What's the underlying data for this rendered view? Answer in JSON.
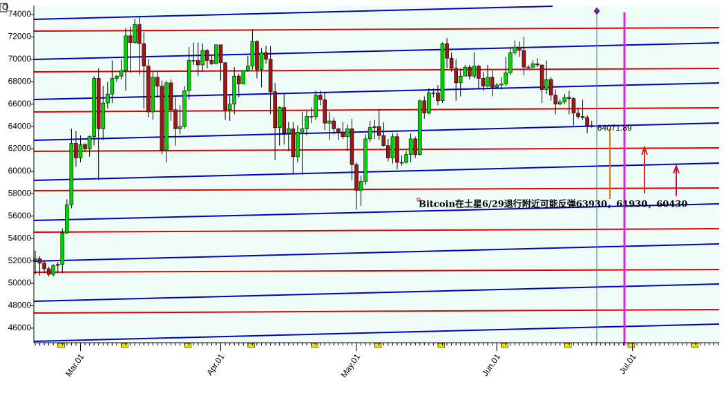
{
  "chart_data": {
    "type": "candlestick",
    "corner_label": "O",
    "annotation": "Bitcoin在土星6/29退行附近可能反弹63930，61930，60430",
    "up_color": "#00d400",
    "down_color": "#a31515",
    "ylim": [
      44760,
      74680
    ],
    "yticks": [
      46000,
      48000,
      50000,
      52000,
      54000,
      56000,
      58000,
      60000,
      62000,
      64000,
      66000,
      68000,
      70000,
      72000,
      74000
    ],
    "categories": [
      null,
      null,
      null,
      null,
      null,
      null,
      null,
      null,
      null,
      null,
      "Mar.01",
      null,
      null,
      null,
      null,
      null,
      null,
      null,
      null,
      null,
      null,
      null,
      null,
      null,
      null,
      null,
      null,
      null,
      null,
      null,
      null,
      null,
      null,
      null,
      null,
      null,
      null,
      null,
      null,
      null,
      null,
      "Apr.01",
      null,
      null,
      null,
      null,
      null,
      null,
      null,
      null,
      null,
      null,
      null,
      null,
      null,
      null,
      null,
      null,
      null,
      null,
      null,
      null,
      null,
      null,
      null,
      null,
      null,
      null,
      null,
      null,
      null,
      "May.01",
      null,
      null,
      null,
      null,
      null,
      null,
      null,
      null,
      null,
      null,
      null,
      null,
      null,
      null,
      null,
      null,
      null,
      null,
      null,
      null,
      null,
      null,
      null,
      null,
      null,
      null,
      null,
      null,
      null,
      null,
      "Jun.01",
      null,
      null,
      null,
      null,
      null,
      null,
      null,
      null,
      null,
      null,
      null,
      null,
      null,
      null,
      null,
      null,
      null,
      null,
      null,
      null,
      null,
      null,
      null,
      null,
      null,
      null,
      null,
      null,
      null,
      "Jul.01",
      null,
      null,
      null,
      null,
      null,
      null,
      null,
      null,
      null,
      null,
      null,
      null,
      null,
      null,
      null,
      null,
      null,
      null,
      null
    ],
    "open": [
      52100,
      52200,
      51800,
      51300,
      50800,
      51600,
      51700,
      54500,
      57000,
      62500,
      61200,
      62400,
      62000,
      63100,
      68300,
      63800,
      66100,
      66900,
      68300,
      68500,
      69000,
      72100,
      71500,
      73100,
      71400,
      69400,
      65300,
      68400,
      67600,
      61900,
      67900,
      65500,
      63800,
      64000,
      67200,
      69900,
      69900,
      69500,
      70800,
      69900,
      69600,
      71300,
      69700,
      65500,
      66000,
      68500,
      67800,
      69000,
      69400,
      71600,
      69100,
      70600,
      70000,
      67100,
      63900,
      65700,
      63400,
      63800,
      61300,
      63500,
      63800,
      64900,
      64900,
      66800,
      66400,
      64300,
      64500,
      63800,
      63500,
      63100,
      63800,
      60600,
      58300,
      59100,
      62900,
      63900,
      64000,
      63200,
      62300,
      61200,
      63100,
      60800,
      60800,
      61500,
      62900,
      61500,
      66300,
      65200,
      67000,
      67000,
      66300,
      71400,
      70100,
      69200,
      67900,
      68500,
      69300,
      68500,
      69400,
      68300,
      67600,
      68400,
      67500,
      67700,
      67800,
      68800,
      70600,
      71100,
      70800,
      69300,
      69300,
      69600,
      69500,
      67300,
      68200,
      66800,
      66000,
      66200,
      66600,
      66500,
      65200,
      64900,
      64800,
      64100,
      null,
      null,
      null,
      null,
      null,
      null,
      null,
      null,
      null,
      null,
      null,
      null,
      null,
      null,
      null,
      null,
      null,
      null,
      null,
      null,
      null,
      null,
      null,
      null,
      null,
      null,
      null,
      null
    ],
    "high": [
      52900,
      52400,
      52000,
      51500,
      51700,
      51900,
      54900,
      57500,
      63800,
      63600,
      63200,
      62500,
      63200,
      68500,
      69200,
      67600,
      68000,
      69900,
      68600,
      70000,
      72800,
      72900,
      73600,
      73800,
      72400,
      70000,
      68900,
      68900,
      68100,
      68100,
      68200,
      66600,
      65900,
      67600,
      71100,
      71500,
      71500,
      71400,
      70900,
      70300,
      71300,
      71300,
      69700,
      66900,
      69300,
      68700,
      69000,
      70300,
      72700,
      71700,
      71000,
      71200,
      71200,
      67900,
      65800,
      66900,
      64400,
      64400,
      64100,
      65300,
      65400,
      65700,
      67200,
      67200,
      67100,
      65300,
      64800,
      63900,
      64400,
      64200,
      64700,
      60800,
      59600,
      63300,
      64500,
      64600,
      65500,
      64400,
      62900,
      63400,
      63400,
      61400,
      61800,
      63400,
      63100,
      66400,
      66700,
      67400,
      67400,
      67700,
      71500,
      71900,
      70600,
      70000,
      69200,
      69500,
      69500,
      70600,
      69500,
      68900,
      69500,
      69000,
      67900,
      68400,
      70200,
      71000,
      71700,
      71600,
      72000,
      69500,
      69900,
      70100,
      69500,
      69900,
      68400,
      67300,
      66400,
      66900,
      67200,
      66600,
      65700,
      66400,
      65000,
      64500,
      null,
      null,
      null,
      null,
      null,
      null,
      null,
      null,
      null,
      null,
      null,
      null,
      null,
      null,
      null,
      null,
      null,
      null,
      null,
      null,
      null,
      null,
      null,
      null,
      null,
      null,
      null,
      null
    ],
    "low": [
      50800,
      50700,
      50900,
      50600,
      50600,
      50900,
      50900,
      54400,
      56700,
      60400,
      60800,
      61700,
      61300,
      62300,
      59200,
      62800,
      65600,
      66100,
      68000,
      68200,
      67200,
      68800,
      71400,
      68600,
      65600,
      64800,
      64600,
      66600,
      61500,
      60800,
      64500,
      62300,
      63300,
      63800,
      66400,
      69500,
      68500,
      68900,
      69200,
      69500,
      69600,
      68100,
      64600,
      64500,
      65100,
      66600,
      67800,
      68900,
      69100,
      68300,
      67500,
      69600,
      65100,
      61000,
      62300,
      62400,
      61800,
      59800,
      60800,
      59700,
      63200,
      64300,
      64600,
      65900,
      63700,
      62800,
      63300,
      62800,
      62900,
      61800,
      59200,
      56600,
      56900,
      58800,
      62600,
      62900,
      62800,
      62200,
      60900,
      60700,
      60200,
      60500,
      60700,
      60800,
      61200,
      61400,
      64700,
      65100,
      66600,
      65900,
      66100,
      69200,
      68900,
      66300,
      66700,
      68500,
      68200,
      68300,
      67300,
      67200,
      67500,
      66700,
      67400,
      67300,
      67600,
      68600,
      70400,
      70200,
      68600,
      69200,
      69200,
      69300,
      66100,
      66900,
      66300,
      65100,
      65900,
      66000,
      65100,
      64100,
      64700,
      64600,
      63400,
      63900,
      null,
      null,
      null,
      null,
      null,
      null,
      null,
      null,
      null,
      null,
      null,
      null,
      null,
      null,
      null,
      null,
      null,
      null,
      null,
      null,
      null,
      null,
      null,
      null,
      null,
      null,
      null,
      null
    ],
    "close": [
      52200,
      51800,
      51300,
      50800,
      51600,
      51700,
      54500,
      57000,
      62500,
      61200,
      62400,
      62000,
      63100,
      68300,
      63800,
      66100,
      66900,
      68300,
      68500,
      69000,
      72100,
      71500,
      73100,
      71400,
      69400,
      65300,
      68400,
      67600,
      61900,
      67900,
      65500,
      63800,
      64000,
      67200,
      69900,
      69900,
      69500,
      70800,
      69900,
      69600,
      71300,
      69700,
      65500,
      66000,
      68500,
      67800,
      69000,
      69400,
      71600,
      69100,
      70600,
      70000,
      67100,
      63900,
      65700,
      63400,
      63800,
      61300,
      63500,
      63800,
      64900,
      64900,
      66800,
      66400,
      64300,
      64500,
      63800,
      63500,
      63100,
      63800,
      60600,
      58300,
      59100,
      62900,
      63900,
      64000,
      63200,
      62300,
      61200,
      63100,
      60800,
      60800,
      61500,
      62900,
      61500,
      66300,
      65200,
      67000,
      67000,
      66300,
      71400,
      70100,
      69200,
      67900,
      68500,
      69300,
      68500,
      69400,
      68300,
      67600,
      68400,
      67500,
      67700,
      67800,
      68800,
      70600,
      71100,
      70800,
      69300,
      69300,
      69600,
      69500,
      67300,
      68200,
      66800,
      66000,
      66200,
      66600,
      66500,
      65200,
      64900,
      64800,
      64100,
      64071.89,
      null,
      null,
      null,
      null,
      null,
      null,
      null,
      null,
      null,
      null,
      null,
      null,
      null,
      null,
      null,
      null,
      null,
      null,
      null,
      null,
      null,
      null,
      null,
      null,
      null,
      null,
      null,
      null
    ]
  }
}
